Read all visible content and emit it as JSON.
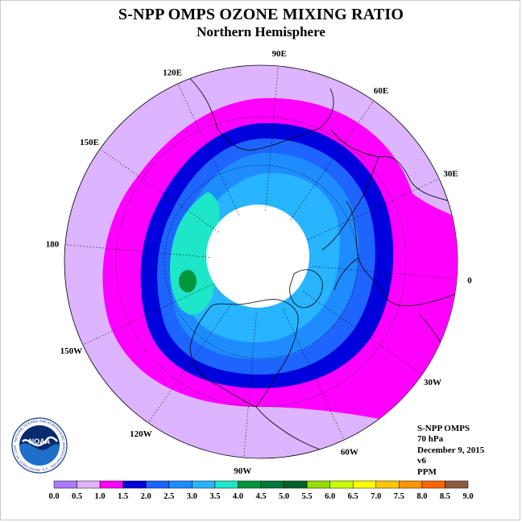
{
  "header": {
    "title": "S-NPP OMPS OZONE MIXING RATIO",
    "subtitle": "Northern Hemisphere"
  },
  "map": {
    "longitude_labels": [
      "90E",
      "60E",
      "30E",
      "0",
      "30W",
      "60W",
      "90W",
      "120W",
      "150W",
      "180",
      "150E",
      "120E"
    ],
    "ozone_bands_ppm": [
      {
        "range": "1.0-1.5",
        "color": "#ff00ff"
      },
      {
        "range": "1.5-2.0",
        "color": "#0000dc"
      },
      {
        "range": "2.0-2.5",
        "color": "#1e64ff"
      },
      {
        "range": "2.5-3.0",
        "color": "#1e8cff"
      },
      {
        "range": "3.0-3.5",
        "color": "#28b4ff"
      },
      {
        "range": "3.5-4.0",
        "color": "#1ee6c8"
      },
      {
        "range": "4.0-4.5",
        "color": "#00963c"
      }
    ],
    "no_data_color": "#ffffff",
    "background_color": "#dcb4ff"
  },
  "info": {
    "product": "S-NPP OMPS",
    "level": "70 hPa",
    "date": "December 9, 2015",
    "version": "v6",
    "units": "PPM"
  },
  "logo": {
    "text": "NOAA",
    "ring_text": "NATIONAL OCEANIC AND ATMOSPHERIC ADMINISTRATION · U.S. DEPARTMENT OF COMMERCE"
  },
  "colorbar": {
    "ticks": [
      "0.0",
      "0.5",
      "1.0",
      "1.5",
      "2.0",
      "2.5",
      "3.0",
      "3.5",
      "4.0",
      "4.5",
      "5.0",
      "5.5",
      "6.0",
      "6.5",
      "7.0",
      "7.5",
      "8.0",
      "8.5",
      "9.0"
    ],
    "colors": [
      "#aa78ff",
      "#dcb4ff",
      "#ff00ff",
      "#0000dc",
      "#1e64ff",
      "#1e8cff",
      "#28b4ff",
      "#1ee6c8",
      "#00963c",
      "#00783c",
      "#006428",
      "#96dc00",
      "#c8ff00",
      "#ffff00",
      "#ffc800",
      "#ff9600",
      "#ff6400",
      "#ff0000",
      "#8c5a3c"
    ]
  }
}
